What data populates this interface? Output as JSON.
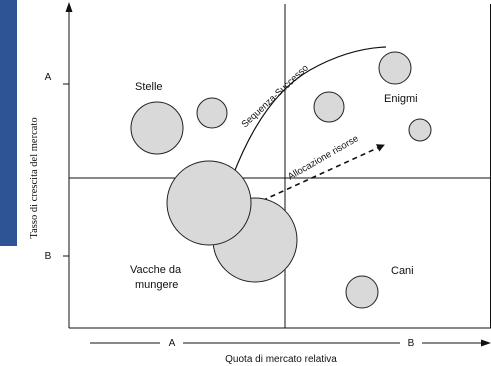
{
  "colors": {
    "side_strip": "#2f5496",
    "bubble_fill": "#d9d9d9",
    "line": "#111111"
  },
  "quadrants": {
    "top_left": "Stelle",
    "top_right": "Enigmi",
    "bottom_left_line1": "Vacche da",
    "bottom_left_line2": "mungere",
    "bottom_right": "Cani"
  },
  "y_axis": {
    "title": "Tasso di crescita del mercato",
    "tick_high": "A",
    "tick_low": "B"
  },
  "x_axis": {
    "title": "Quota di mercato relativa",
    "tick_left": "A",
    "tick_right": "B"
  },
  "curves": {
    "success_sequence": "Sequenza-Successo",
    "resource_allocation": "Allocazione risorse"
  }
}
